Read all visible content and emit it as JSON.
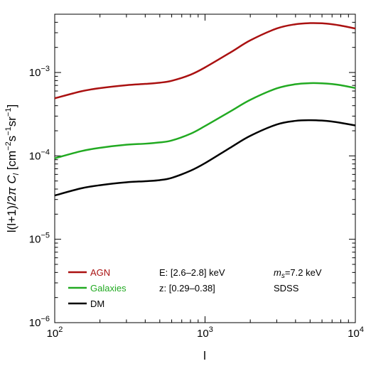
{
  "chart_data": {
    "type": "line",
    "xlabel": "l",
    "ylabel_parts": [
      "l(l+1)/2",
      "π",
      " ",
      "C",
      "l",
      "  [cm",
      "−2",
      "s",
      "−1",
      "sr",
      "−1",
      "]"
    ],
    "xscale": "log",
    "yscale": "log",
    "xlim": [
      100,
      10000
    ],
    "ylim": [
      1e-06,
      0.005
    ],
    "x_ticks": [
      {
        "value": 100,
        "base": "10",
        "exp": "2"
      },
      {
        "value": 1000,
        "base": "10",
        "exp": "3"
      },
      {
        "value": 10000,
        "base": "10",
        "exp": "4"
      }
    ],
    "y_ticks": [
      {
        "value": 1e-06,
        "base": "10",
        "exp": "−6"
      },
      {
        "value": 1e-05,
        "base": "10",
        "exp": "−5"
      },
      {
        "value": 0.0001,
        "base": "10",
        "exp": "−4"
      },
      {
        "value": 0.001,
        "base": "10",
        "exp": "−3"
      }
    ],
    "grid": false,
    "legend_position": "bottom-left",
    "series": [
      {
        "name": "AGN",
        "color": "#aa1111",
        "x": [
          100,
          150,
          200,
          300,
          400,
          500,
          600,
          800,
          1000,
          1500,
          2000,
          3000,
          4000,
          5000,
          6000,
          7000,
          8000,
          10000
        ],
        "y": [
          0.00049,
          0.000595,
          0.00065,
          0.000705,
          0.00073,
          0.000755,
          0.000795,
          0.00094,
          0.00115,
          0.00177,
          0.00243,
          0.00337,
          0.00379,
          0.00391,
          0.00389,
          0.00379,
          0.00365,
          0.00337
        ]
      },
      {
        "name": "Galaxies",
        "color": "#22aa22",
        "x": [
          100,
          150,
          200,
          300,
          400,
          500,
          600,
          800,
          1000,
          1500,
          2000,
          3000,
          4000,
          5000,
          6000,
          7000,
          8000,
          10000
        ],
        "y": [
          9.35e-05,
          0.000114,
          0.000125,
          0.000136,
          0.00014,
          0.000145,
          0.000153,
          0.000184,
          0.000228,
          0.000348,
          0.00047,
          0.000645,
          0.000723,
          0.000745,
          0.000742,
          0.000727,
          0.000704,
          0.000651
        ]
      },
      {
        "name": "DM",
        "color": "#000000",
        "x": [
          100,
          150,
          200,
          300,
          400,
          500,
          600,
          800,
          1000,
          1500,
          2000,
          3000,
          4000,
          5000,
          6000,
          7000,
          8000,
          10000
        ],
        "y": [
          3.35e-05,
          4.08e-05,
          4.45e-05,
          4.82e-05,
          4.97e-05,
          5.12e-05,
          5.45e-05,
          6.63e-05,
          8.18e-05,
          0.000128,
          0.000174,
          0.000238,
          0.000263,
          0.000268,
          0.000265,
          0.000258,
          0.000249,
          0.000232
        ]
      }
    ],
    "annotations": {
      "energy": "E:  [2.6–2.8] keV",
      "redshift": "z:  [0.29–0.38]",
      "mass_symbol": "m",
      "mass_sub": "s",
      "mass_value": "=7.2 keV",
      "survey": "SDSS"
    }
  }
}
